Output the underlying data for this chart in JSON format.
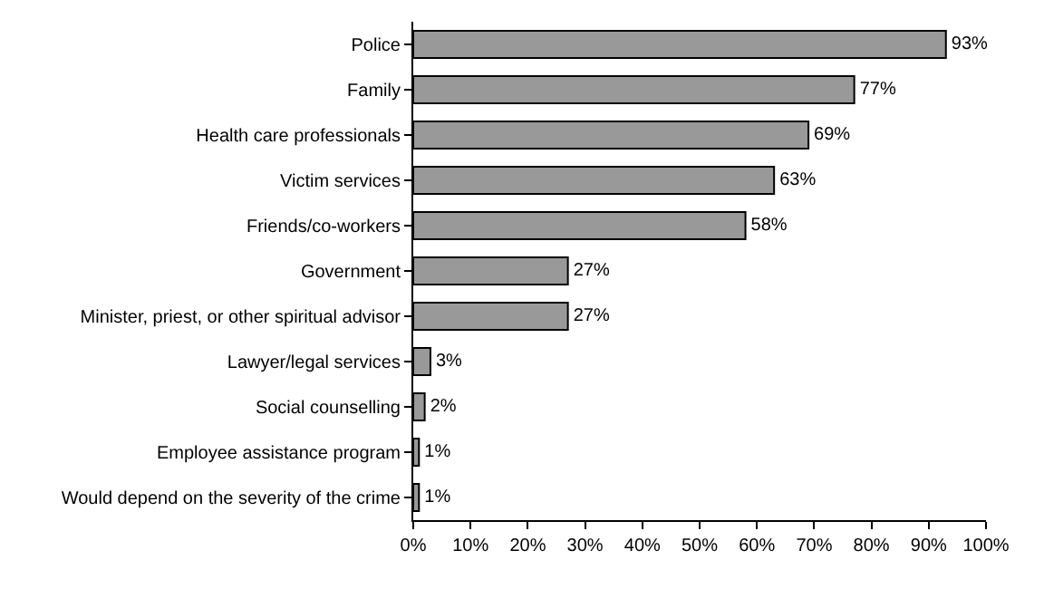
{
  "chart_data": {
    "type": "bar",
    "orientation": "horizontal",
    "categories": [
      "Police",
      "Family",
      "Health care professionals",
      "Victim services",
      "Friends/co-workers",
      "Government",
      "Minister, priest, or other spiritual advisor",
      "Lawyer/legal services",
      "Social counselling",
      "Employee assistance program",
      "Would depend on the severity of the crime"
    ],
    "values": [
      93,
      77,
      69,
      63,
      58,
      27,
      27,
      3,
      2,
      1,
      1
    ],
    "value_labels": [
      "93%",
      "77%",
      "69%",
      "63%",
      "58%",
      "27%",
      "27%",
      "3%",
      "2%",
      "1%",
      "1%"
    ],
    "color": "#999999",
    "xlim": [
      0,
      100
    ],
    "xticks": [
      {
        "value": 0,
        "label": "0%"
      },
      {
        "value": 10,
        "label": "10%"
      },
      {
        "value": 20,
        "label": "20%"
      },
      {
        "value": 30,
        "label": "30%"
      },
      {
        "value": 40,
        "label": "40%"
      },
      {
        "value": 50,
        "label": "50%"
      },
      {
        "value": 60,
        "label": "60%"
      },
      {
        "value": 70,
        "label": "70%"
      },
      {
        "value": 80,
        "label": "80%"
      },
      {
        "value": 90,
        "label": "90%"
      },
      {
        "value": 100,
        "label": "100%"
      }
    ],
    "legend": false
  }
}
